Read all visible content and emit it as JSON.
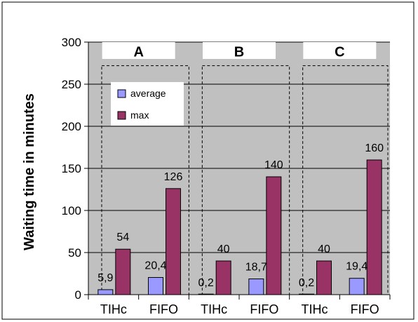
{
  "chart_data": {
    "type": "bar",
    "ylabel": "Waiting time in minutes",
    "xlabel": "",
    "ylim": [
      0,
      300
    ],
    "yticks": [
      0,
      50,
      100,
      150,
      200,
      250,
      300
    ],
    "grid": true,
    "legend_position": "top-left",
    "groups": [
      {
        "label": "A",
        "categories": [
          "TIHc",
          "FIFO"
        ]
      },
      {
        "label": "B",
        "categories": [
          "TIHc",
          "FIFO"
        ]
      },
      {
        "label": "C",
        "categories": [
          "TIHc",
          "FIFO"
        ]
      }
    ],
    "categories": [
      "TIHc",
      "FIFO",
      "TIHc",
      "FIFO",
      "TIHc",
      "FIFO"
    ],
    "series": [
      {
        "name": "average",
        "values": [
          5.9,
          20.4,
          0.2,
          18.7,
          0.2,
          19.4
        ],
        "labels": [
          "5,9",
          "20,4",
          "0,2",
          "18,7",
          "0,2",
          "19,4"
        ],
        "color": "#9999ff"
      },
      {
        "name": "max",
        "values": [
          54,
          126,
          40,
          140,
          40,
          160
        ],
        "labels": [
          "54",
          "126",
          "40",
          "140",
          "40",
          "160"
        ],
        "color": "#993366"
      }
    ],
    "colors": {
      "plot_background": "#c0c0c0",
      "axis": "#000000"
    }
  }
}
